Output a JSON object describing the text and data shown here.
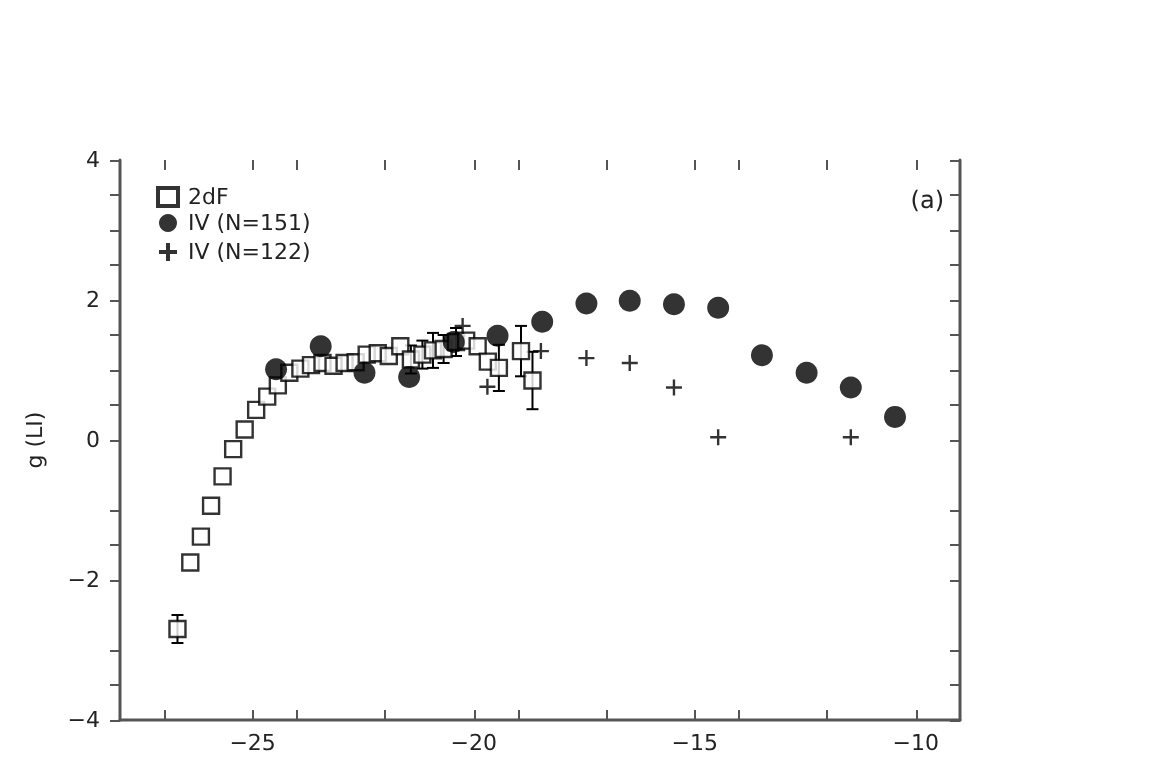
{
  "chart_data": {
    "type": "scatter",
    "ylabel": "g (LI)",
    "annotations": [
      "(a)"
    ],
    "xlim": [
      -28,
      -9
    ],
    "xticks": [
      {
        "value": -27,
        "label": null
      },
      -25,
      {
        "value": -24,
        "label": null
      },
      {
        "value": -22,
        "label": null
      },
      -20,
      {
        "value": -19,
        "label": null
      },
      {
        "value": -17,
        "label": null
      },
      -15,
      {
        "value": -14,
        "label": null
      },
      {
        "value": -12,
        "label": null
      },
      -10
    ],
    "ylim": [
      -4,
      4
    ],
    "yticks": [
      -4,
      {
        "value": -3.5,
        "label": null
      },
      {
        "value": -3,
        "label": null
      },
      -2,
      {
        "value": -1.5,
        "label": null
      },
      {
        "value": -1,
        "label": null
      },
      0,
      {
        "value": 0.5,
        "label": null
      },
      {
        "value": 1,
        "label": null
      },
      {
        "value": 1.5,
        "label": null
      },
      2,
      {
        "value": 2.5,
        "label": null
      },
      {
        "value": 3,
        "label": null
      },
      {
        "value": 3.5,
        "label": null
      },
      4
    ],
    "grid": false,
    "legend": "top left",
    "series": [
      {
        "name": "2dF",
        "color": "#000000",
        "marker": "square",
        "x": [
          -26.7,
          -26.41,
          -26.17,
          -25.94,
          -25.68,
          -25.44,
          -25.18,
          -24.92,
          -24.67,
          -24.43,
          -24.17,
          -23.92,
          -23.68,
          -23.42,
          -23.17,
          -22.92,
          -22.67,
          -22.42,
          -22.17,
          -21.92,
          -21.66,
          -21.42,
          -21.16,
          -20.92,
          -20.68,
          -20.4,
          -20.17,
          -19.91,
          -19.68,
          -19.43,
          -18.93,
          -18.67
        ],
        "values": [
          -2.7,
          -1.75,
          -1.38,
          -0.94,
          -0.52,
          -0.13,
          0.15,
          0.43,
          0.62,
          0.78,
          0.96,
          1.02,
          1.07,
          1.1,
          1.06,
          1.1,
          1.11,
          1.22,
          1.24,
          1.2,
          1.34,
          1.15,
          1.22,
          1.28,
          1.3,
          1.4,
          1.42,
          1.34,
          1.12,
          1.03,
          1.27,
          0.85
        ],
        "errors": [
          0.2,
          null,
          null,
          null,
          null,
          null,
          null,
          null,
          null,
          null,
          null,
          null,
          null,
          null,
          null,
          null,
          null,
          null,
          null,
          null,
          null,
          0.2,
          0.2,
          0.25,
          0.2,
          0.2,
          null,
          null,
          null,
          0.33,
          0.36,
          0.41
        ]
      },
      {
        "name": "IV (N=151)",
        "color": "#000000",
        "marker": "circle",
        "x": [
          -24.47,
          -23.46,
          -22.47,
          -21.46,
          -20.45,
          -19.46,
          -18.45,
          -17.45,
          -16.47,
          -15.47,
          -14.47,
          -13.48,
          -12.47,
          -11.47,
          -10.47
        ],
        "values": [
          1.01,
          1.34,
          0.96,
          0.9,
          1.4,
          1.49,
          1.69,
          1.95,
          1.99,
          1.94,
          1.89,
          1.21,
          0.96,
          0.75,
          0.33
        ]
      },
      {
        "name": "IV (N=122)",
        "color": "#000000",
        "marker": "cross",
        "x": [
          -20.25,
          -19.69,
          -18.48,
          -17.45,
          -16.47,
          -15.47,
          -14.47,
          -11.47
        ],
        "values": [
          1.63,
          0.76,
          1.27,
          1.17,
          1.1,
          0.75,
          0.04,
          0.04
        ]
      }
    ]
  }
}
